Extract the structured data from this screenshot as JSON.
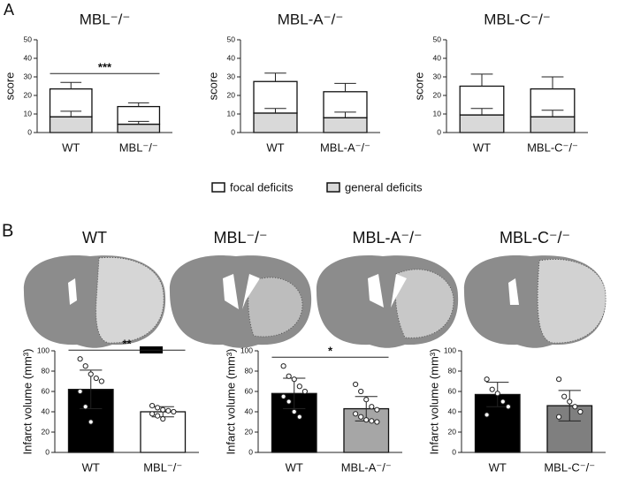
{
  "panel_labels": [
    "A",
    "B"
  ],
  "image_titles": [
    "WT",
    "MBL⁻/⁻",
    "MBL-A⁻/⁻",
    "MBL-C⁻/⁻"
  ],
  "chart_data": [
    {
      "type": "bar",
      "stacked": true,
      "title": "MBL⁻/⁻",
      "y_label": "score",
      "categories": [
        "WT",
        "MBL⁻/⁻"
      ],
      "series": [
        {
          "name": "general deficits",
          "color": "#d9d9d9",
          "values": [
            8.5,
            4.5
          ],
          "errors": [
            3,
            1.5
          ]
        },
        {
          "name": "focal deficits",
          "color": "#ffffff",
          "values": [
            15,
            9.5
          ],
          "errors": [
            3.5,
            2
          ]
        }
      ],
      "error_bars": "up",
      "annotation": "***",
      "ylim": [
        0,
        50
      ],
      "yticks": [
        0,
        10,
        20,
        30,
        40,
        50
      ]
    },
    {
      "type": "bar",
      "stacked": true,
      "title": "MBL-A⁻/⁻",
      "y_label": "score",
      "categories": [
        "WT",
        "MBL-A⁻/⁻"
      ],
      "series": [
        {
          "color": "#d9d9d9",
          "values": [
            10.5,
            8
          ],
          "errors": [
            2.5,
            3
          ]
        },
        {
          "color": "#ffffff",
          "values": [
            17,
            14
          ],
          "errors": [
            4.5,
            4.5
          ]
        }
      ],
      "error_bars": "up",
      "ylim": [
        0,
        50
      ],
      "yticks": [
        0,
        10,
        20,
        30,
        40,
        50
      ]
    },
    {
      "type": "bar",
      "stacked": true,
      "title": "MBL-C⁻/⁻",
      "y_label": "score",
      "categories": [
        "WT",
        "MBL-C⁻/⁻"
      ],
      "series": [
        {
          "color": "#d9d9d9",
          "values": [
            9.5,
            8.5
          ],
          "errors": [
            3.5,
            3.5
          ]
        },
        {
          "color": "#ffffff",
          "values": [
            15.5,
            15
          ],
          "errors": [
            6.5,
            6.5
          ]
        }
      ],
      "error_bars": "up",
      "ylim": [
        0,
        50
      ],
      "yticks": [
        0,
        10,
        20,
        30,
        40,
        50
      ]
    },
    {
      "type": "bar",
      "y_label": "Infarct volume (mm³)",
      "categories": [
        "WT",
        "MBL⁻/⁻"
      ],
      "values": [
        62,
        40
      ],
      "errors": [
        19,
        5
      ],
      "colors": [
        "#000000",
        "#ffffff"
      ],
      "points": [
        [
          92,
          85,
          77,
          73,
          70,
          60,
          45,
          30
        ],
        [
          46,
          44,
          42,
          41,
          40,
          38,
          36,
          33
        ]
      ],
      "error_bars": "both",
      "annotation": "**",
      "ylim": [
        0,
        100
      ],
      "yticks": [
        0,
        20,
        40,
        60,
        80,
        100
      ]
    },
    {
      "type": "bar",
      "y_label": "Infarct volume (mm³)",
      "categories": [
        "WT",
        "MBL-A⁻/⁻"
      ],
      "values": [
        58,
        43
      ],
      "errors": [
        15,
        12
      ],
      "colors": [
        "#000000",
        "#a6a6a6"
      ],
      "points": [
        [
          85,
          75,
          72,
          65,
          60,
          55,
          50,
          40,
          35
        ],
        [
          67,
          60,
          52,
          45,
          42,
          38,
          35,
          32,
          31,
          30
        ]
      ],
      "error_bars": "both",
      "annotation": "*",
      "ylim": [
        0,
        100
      ],
      "yticks": [
        0,
        20,
        40,
        60,
        80,
        100
      ]
    },
    {
      "type": "bar",
      "y_label": "Infarct volume (mm³)",
      "categories": [
        "WT",
        "MBL-C⁻/⁻"
      ],
      "values": [
        57,
        46
      ],
      "errors": [
        12,
        15
      ],
      "colors": [
        "#000000",
        "#7f7f7f"
      ],
      "points": [
        [
          72,
          62,
          58,
          50,
          45,
          37
        ],
        [
          72,
          55,
          50,
          45,
          40,
          35
        ]
      ],
      "error_bars": "both",
      "ylim": [
        0,
        100
      ],
      "yticks": [
        0,
        20,
        40,
        60,
        80,
        100
      ]
    }
  ]
}
